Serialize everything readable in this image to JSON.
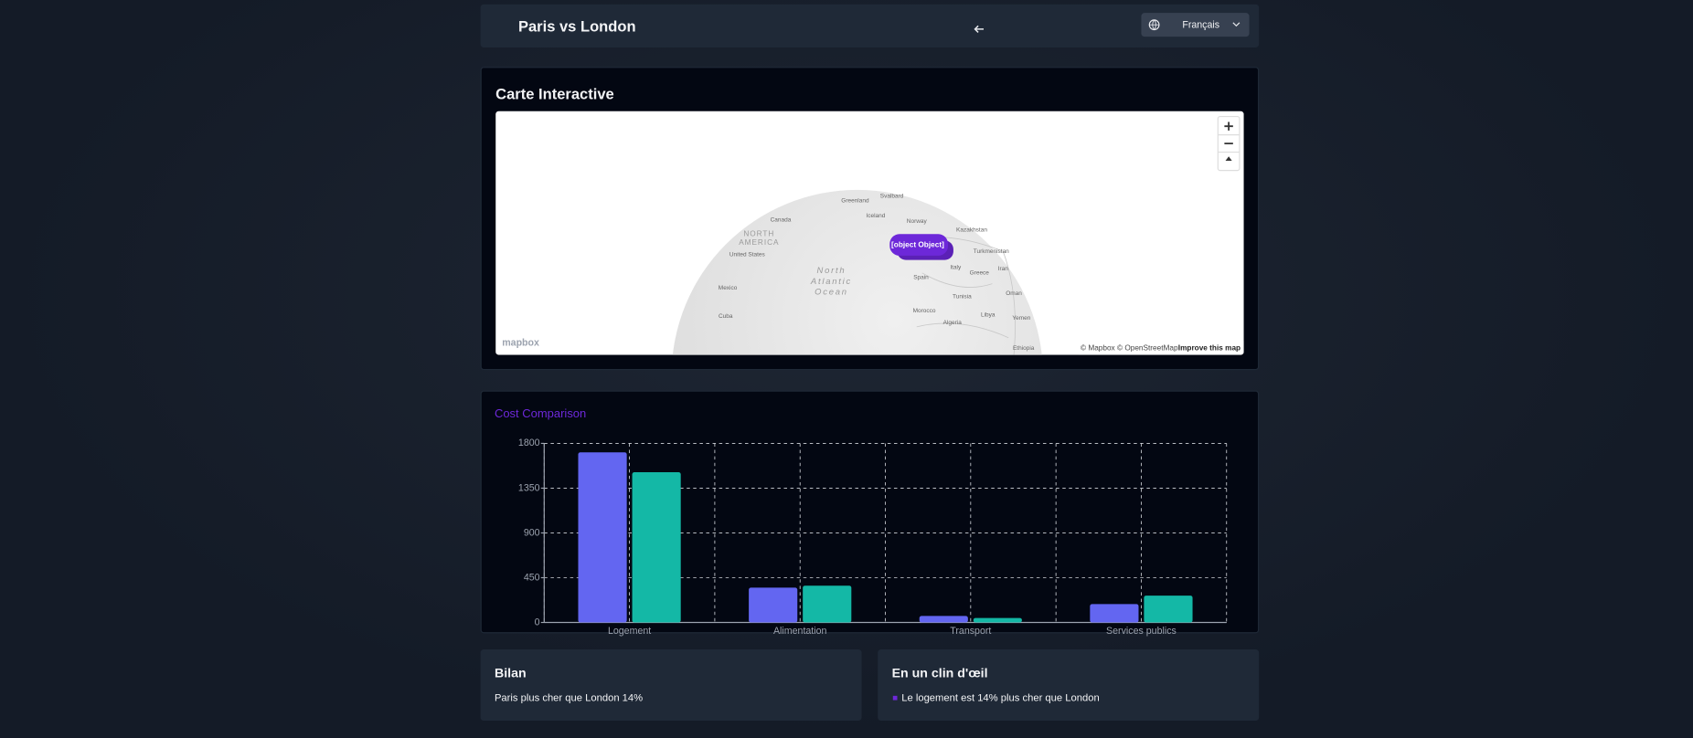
{
  "header": {
    "title": "Paris vs London",
    "language": "Français"
  },
  "map": {
    "title": "Carte Interactive",
    "labels": [
      "Greenland",
      "Svalbard",
      "Canada",
      "Iceland",
      "Norway",
      "Kazakhstan",
      "NORTH",
      "AMERICA",
      "United States",
      "North",
      "Atlantic",
      "Ocean",
      "Mexico",
      "Cuba",
      "Spain",
      "Italy",
      "Greece",
      "Iran",
      "Turkmenistan",
      "Tunisia",
      "Morocco",
      "Algeria",
      "Libya",
      "Oman",
      "Yemen",
      "Ethiopia"
    ],
    "marker": "[object Object]",
    "logo": "mapbox",
    "attribution": "© Mapbox © OpenStreetMap",
    "improve": "Improve this map"
  },
  "chart_data": {
    "type": "bar",
    "title": "Cost Comparison",
    "categories": [
      "Logement",
      "Alimentation",
      "Transport",
      "Services publics"
    ],
    "series": [
      {
        "color": "#6366f1",
        "values": [
          1710,
          350,
          65,
          185
        ]
      },
      {
        "color": "#14b8a6",
        "values": [
          1510,
          370,
          45,
          270
        ]
      }
    ],
    "ylim": [
      0,
      1800
    ],
    "yticks": [
      0,
      450,
      900,
      1350,
      1800
    ],
    "grid": true
  },
  "summary": {
    "title": "Bilan",
    "text": "Paris plus cher que London 14%"
  },
  "glance": {
    "title": "En un clin d'œil",
    "items": [
      "Le logement est 14% plus cher que London"
    ]
  }
}
